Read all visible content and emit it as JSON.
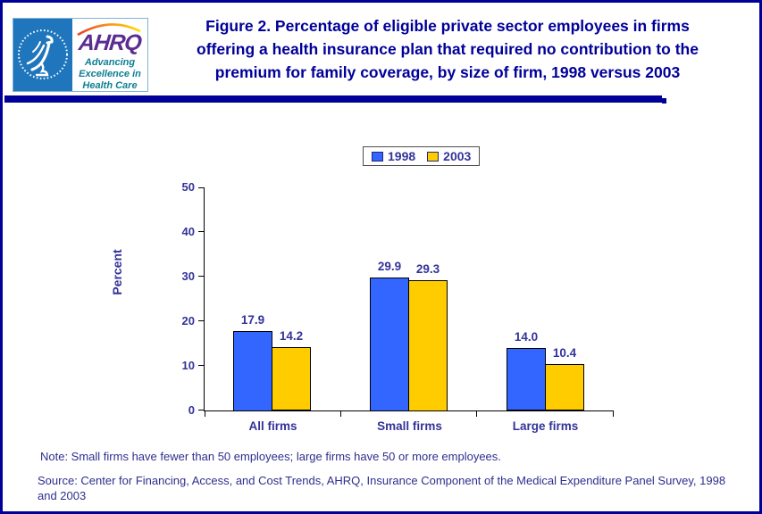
{
  "header": {
    "logo": {
      "ahrq_acronym": "AHRQ",
      "tagline_line1": "Advancing",
      "tagline_line2": "Excellence in",
      "tagline_line3": "Health Care",
      "colors": {
        "hhs_blue": "#1F76BC",
        "ahrq_purple": "#5B2D91",
        "tagline_teal": "#0C7F93"
      }
    },
    "title_lines": [
      "Figure 2. Percentage of eligible private sector employees in firms",
      "offering a health insurance plan that required no contribution to the",
      "premium for family coverage, by size of firm, 1998 versus 2003"
    ]
  },
  "chart_data": {
    "type": "bar",
    "title": "Figure 2. Percentage of eligible private sector employees in firms offering a health insurance plan that required no contribution to the premium for family coverage, by size of firm, 1998 versus 2003",
    "categories": [
      "All firms",
      "Small firms",
      "Large firms"
    ],
    "series": [
      {
        "name": "1998",
        "color": "#3366FF",
        "values": [
          17.9,
          29.9,
          14.0
        ]
      },
      {
        "name": "2003",
        "color": "#FFCC00",
        "values": [
          14.2,
          29.3,
          10.4
        ]
      }
    ],
    "ylabel": "Percent",
    "ylim": [
      0,
      50
    ],
    "yticks": [
      0,
      10,
      20,
      30,
      40,
      50
    ],
    "grid": false,
    "legend_position": "top-center",
    "data_labels": true,
    "axis_color": "#000000",
    "label_color": "#333399"
  },
  "footer": {
    "note": "Note: Small firms have fewer than 50 employees; large firms have 50 or more employees.",
    "source": "Source: Center for Financing, Access, and Cost Trends, AHRQ, Insurance Component of the Medical Expenditure Panel Survey, 1998 and 2003"
  }
}
